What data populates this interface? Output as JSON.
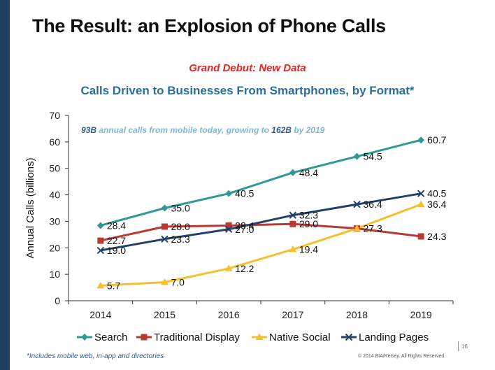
{
  "slide": {
    "title": "The Result: an Explosion of Phone Calls",
    "tagline": "Grand Debut: New Data",
    "footnote": "*Includes mobile web, in-app and directories",
    "copyright": "© 2014 BIA/Kelsey. All Rights Reserved.",
    "page_number": "16"
  },
  "colors": {
    "sidebar": "#1f3f5e",
    "tagline": "#e8221f",
    "chart_title": "#2a6e9c",
    "annotation_dark": "#2a5d8a",
    "annotation_light": "#7fb6d8"
  },
  "chart_data": {
    "type": "line",
    "title": "Calls Driven to Businesses From Smartphones, by Format*",
    "xlabel": "",
    "ylabel": "Annual Calls (billions)",
    "x": [
      "2014",
      "2015",
      "2016",
      "2017",
      "2018",
      "2019"
    ],
    "ylim": [
      0,
      70
    ],
    "yticks": [
      0,
      10,
      20,
      30,
      40,
      50,
      60,
      70
    ],
    "grid": false,
    "legend": "bottom",
    "annotation": {
      "parts": [
        {
          "text": "93B",
          "style": "dark"
        },
        {
          "text": " annual calls from mobile today, growing to ",
          "style": "light"
        },
        {
          "text": "162B",
          "style": "dark"
        },
        {
          "text": " by 2019",
          "style": "light"
        }
      ]
    },
    "series": [
      {
        "name": "Search",
        "color": "#2e9a93",
        "marker": "diamond",
        "values": [
          28.4,
          35.0,
          40.5,
          48.4,
          54.5,
          60.7
        ],
        "labels": [
          "28.4",
          "35.0",
          "40.5",
          "48.4",
          "54.5",
          "60.7"
        ]
      },
      {
        "name": "Traditional Display",
        "color": "#b83a33",
        "marker": "square",
        "values": [
          22.7,
          28.0,
          28.4,
          29.0,
          27.3,
          24.3
        ],
        "labels": [
          "22.7",
          "28.0",
          "28.4",
          "29.0",
          "27.3",
          "24.3"
        ]
      },
      {
        "name": "Native Social",
        "color": "#f5c02b",
        "marker": "triangle",
        "values": [
          5.7,
          7.0,
          12.2,
          19.4,
          27.3,
          36.4
        ],
        "labels": [
          "5.7",
          "7.0",
          "12.2",
          "19.4",
          "",
          "36.4"
        ]
      },
      {
        "name": "Landing Pages",
        "color": "#24416a",
        "marker": "x",
        "values": [
          19.0,
          23.3,
          27.0,
          32.3,
          36.4,
          40.5
        ],
        "labels": [
          "19.0",
          "23.3",
          "27.0",
          "32.3",
          "36.4",
          "40.5"
        ]
      }
    ]
  }
}
